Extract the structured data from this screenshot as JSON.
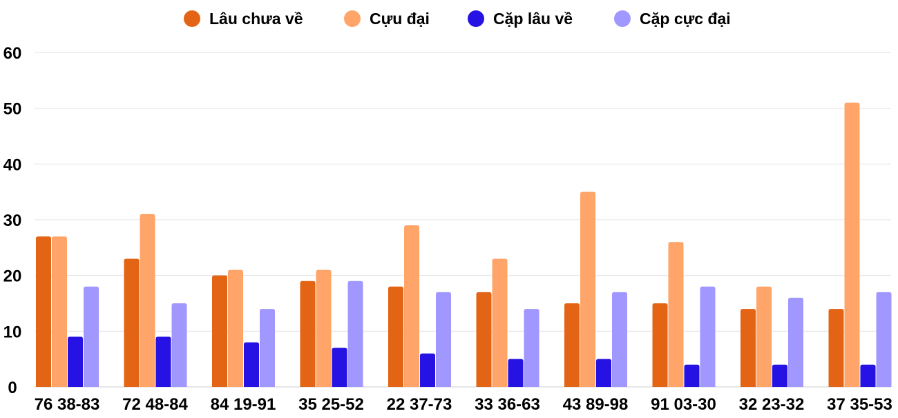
{
  "chart_data": {
    "type": "bar",
    "categories": [
      "76 38-83",
      "72 48-84",
      "84 19-91",
      "35 25-52",
      "22 37-73",
      "33 36-63",
      "43 89-98",
      "91 03-30",
      "32 23-32",
      "37 35-53"
    ],
    "series": [
      {
        "name": "Lâu chưa về",
        "color": "#e36414",
        "values": [
          27,
          23,
          20,
          19,
          18,
          17,
          15,
          15,
          14,
          14
        ]
      },
      {
        "name": "Cựu đại",
        "color": "#ffa56a",
        "values": [
          27,
          31,
          21,
          21,
          29,
          23,
          35,
          26,
          18,
          51
        ]
      },
      {
        "name": "Cặp lâu về",
        "color": "#2612e3",
        "values": [
          9,
          9,
          8,
          7,
          6,
          5,
          5,
          4,
          4,
          4
        ]
      },
      {
        "name": "Cặp cực đại",
        "color": "#a097ff",
        "values": [
          18,
          15,
          14,
          19,
          17,
          14,
          17,
          18,
          16,
          17
        ]
      }
    ],
    "yticks": [
      "0",
      "10",
      "20",
      "30",
      "40",
      "50",
      "60"
    ],
    "ylim": [
      0,
      60
    ],
    "grid": true,
    "legend": "top-center"
  }
}
